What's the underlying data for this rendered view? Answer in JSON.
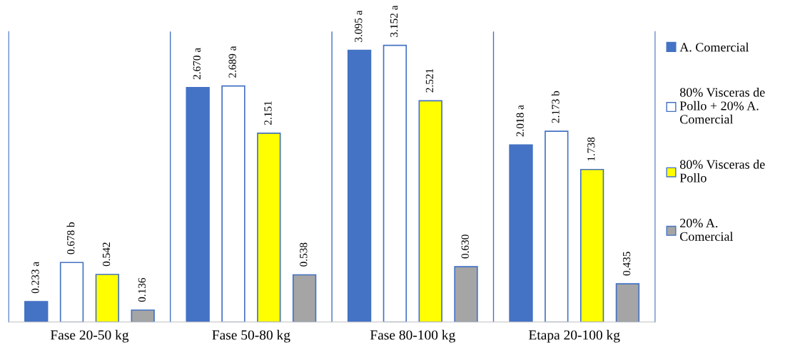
{
  "chart_data": {
    "type": "bar",
    "categories": [
      "Fase 20-50 kg",
      "Fase 50-80 kg",
      "Fase 80-100 kg",
      "Etapa 20-100 kg"
    ],
    "series": [
      {
        "name": "A. Comercial",
        "color": "#4472c4",
        "values": [
          0.233,
          2.67,
          3.095,
          2.018
        ],
        "value_labels": [
          "0.233 a",
          "2.670 a",
          "3.095 a",
          "2.018 a"
        ]
      },
      {
        "name": "80% Visceras de\nPollo + 20% A.\nComercial",
        "color": "#ffffff",
        "values": [
          0.678,
          2.689,
          3.152,
          2.173
        ],
        "value_labels": [
          "0.678 b",
          "2.689 a",
          "3.152 a",
          "2.173 b"
        ]
      },
      {
        "name": "80% Visceras de\nPollo",
        "color": "#ffff00",
        "values": [
          0.542,
          2.151,
          2.521,
          1.738
        ],
        "value_labels": [
          "0.542",
          "2.151",
          "2.521",
          "1.738"
        ]
      },
      {
        "name": "20% A.\nComercial",
        "color": "#a5a5a5",
        "values": [
          0.136,
          0.538,
          0.63,
          0.435
        ],
        "value_labels": [
          "0.136",
          "0.538",
          "0.630",
          "0.435"
        ]
      }
    ],
    "grid": "x",
    "legend": "right"
  }
}
